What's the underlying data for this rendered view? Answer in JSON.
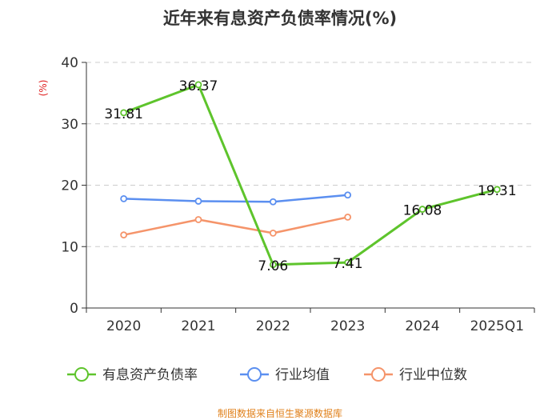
{
  "chart_data": {
    "type": "line",
    "title": "近年来有息资产负债率情况(%)",
    "ylabel": "(%)",
    "xlabel": "",
    "categories": [
      "2020",
      "2021",
      "2022",
      "2023",
      "2024",
      "2025Q1"
    ],
    "ylim": [
      0,
      40
    ],
    "yticks": [
      0,
      10,
      20,
      30,
      40
    ],
    "grid": true,
    "legend_position": "bottom",
    "series": [
      {
        "name": "有息资产负债率",
        "color": "#5ec42c",
        "values": [
          31.81,
          36.37,
          7.06,
          7.41,
          16.08,
          19.31
        ],
        "labels": [
          "31.81",
          "36.37",
          "7.06",
          "7.41",
          "16.08",
          "19.31"
        ]
      },
      {
        "name": "行业均值",
        "color": "#5b8ff0",
        "values": [
          17.8,
          17.4,
          17.3,
          18.4,
          null,
          null
        ]
      },
      {
        "name": "行业中位数",
        "color": "#f5946a",
        "values": [
          11.9,
          14.4,
          12.2,
          14.8,
          null,
          null
        ]
      }
    ],
    "source": "制图数据来自恒生聚源数据库"
  }
}
